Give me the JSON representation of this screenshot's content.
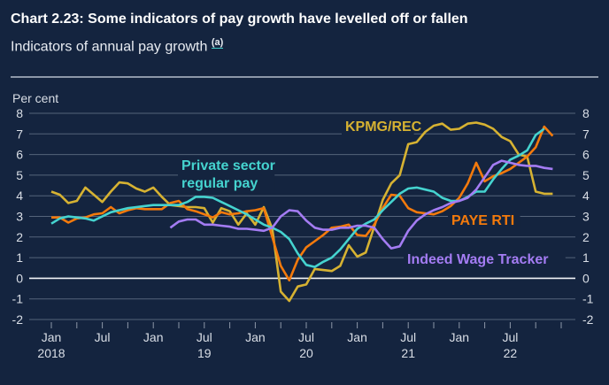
{
  "header": {
    "title": "Chart 2.23: Some indicators of pay growth have levelled off or fallen",
    "subtitle": "Indicators of annual pay growth",
    "footnote_marker": "(a)"
  },
  "chart_data": {
    "type": "line",
    "title": "Chart 2.23: Some indicators of pay growth have levelled off or fallen",
    "subtitle": "Indicators of annual pay growth",
    "ylabel": "Per cent",
    "xlabel": "",
    "ylim": [
      -2,
      8
    ],
    "yticks": [
      -2,
      -1,
      0,
      1,
      2,
      3,
      4,
      5,
      6,
      7,
      8
    ],
    "grid": true,
    "x_start": "Jan 2018",
    "x_frequency": "monthly",
    "xtick_labels": [
      {
        "month_index": 0,
        "label": "Jan",
        "year": "2018"
      },
      {
        "month_index": 6,
        "label": "Jul",
        "year": ""
      },
      {
        "month_index": 12,
        "label": "Jan",
        "year": ""
      },
      {
        "month_index": 18,
        "label": "Jul",
        "year": "19"
      },
      {
        "month_index": 24,
        "label": "Jan",
        "year": ""
      },
      {
        "month_index": 30,
        "label": "Jul",
        "year": "20"
      },
      {
        "month_index": 36,
        "label": "Jan",
        "year": ""
      },
      {
        "month_index": 42,
        "label": "Jul",
        "year": "21"
      },
      {
        "month_index": 48,
        "label": "Jan",
        "year": ""
      },
      {
        "month_index": 54,
        "label": "Jul",
        "year": "22"
      }
    ],
    "series": [
      {
        "name": "KPMG/REC",
        "color": "#d6b232",
        "values": [
          4.2,
          4.05,
          3.65,
          3.75,
          4.4,
          4.05,
          3.7,
          4.2,
          4.65,
          4.6,
          4.35,
          4.2,
          4.4,
          3.95,
          3.55,
          3.5,
          3.45,
          3.45,
          3.4,
          2.7,
          3.4,
          3.25,
          2.6,
          3.15,
          2.6,
          3.45,
          2.4,
          -0.65,
          -1.1,
          -0.4,
          -0.3,
          0.45,
          0.4,
          0.35,
          0.6,
          1.6,
          1.05,
          1.25,
          2.5,
          3.8,
          4.6,
          5.0,
          6.5,
          6.6,
          7.1,
          7.4,
          7.5,
          7.2,
          7.25,
          7.5,
          7.55,
          7.45,
          7.25,
          6.85,
          6.65,
          6.0,
          5.9,
          4.2,
          4.1,
          4.1
        ]
      },
      {
        "name": "PAYE RTI",
        "color": "#f47a0c",
        "values": [
          2.95,
          2.95,
          2.7,
          2.9,
          2.95,
          3.1,
          3.15,
          3.45,
          3.15,
          3.3,
          3.4,
          3.35,
          3.35,
          3.35,
          3.65,
          3.75,
          3.35,
          3.25,
          3.1,
          2.95,
          3.2,
          3.1,
          3.15,
          3.25,
          3.3,
          3.4,
          2.0,
          0.6,
          -0.1,
          0.9,
          1.5,
          1.8,
          2.1,
          2.45,
          2.5,
          2.6,
          2.1,
          2.05,
          2.6,
          3.4,
          4.05,
          4.0,
          3.4,
          3.2,
          3.15,
          3.1,
          3.25,
          3.5,
          3.9,
          4.6,
          5.6,
          4.7,
          4.95,
          5.1,
          5.3,
          5.6,
          5.9,
          6.35,
          7.35,
          6.9
        ]
      },
      {
        "name": "Private sector regular pay",
        "color": "#45d3cf",
        "values": [
          2.65,
          2.9,
          3.0,
          2.95,
          2.9,
          2.8,
          3.0,
          3.2,
          3.3,
          3.4,
          3.45,
          3.5,
          3.55,
          3.55,
          3.55,
          3.55,
          3.7,
          3.95,
          3.95,
          3.9,
          3.7,
          3.5,
          3.3,
          3.1,
          2.85,
          2.6,
          2.45,
          2.25,
          1.9,
          1.2,
          0.65,
          0.55,
          0.8,
          1.0,
          1.4,
          1.9,
          2.4,
          2.65,
          2.85,
          3.3,
          3.7,
          4.1,
          4.35,
          4.4,
          4.3,
          4.2,
          3.9,
          3.75,
          3.75,
          3.95,
          4.2,
          4.2,
          4.8,
          5.3,
          5.75,
          5.95,
          6.2,
          6.95,
          7.25,
          null
        ]
      },
      {
        "name": "Indeed Wage Tracker",
        "color": "#a47cf3",
        "values": [
          null,
          null,
          null,
          null,
          null,
          null,
          null,
          null,
          null,
          null,
          null,
          null,
          null,
          null,
          2.45,
          2.75,
          2.85,
          2.85,
          2.6,
          2.6,
          2.55,
          2.5,
          2.4,
          2.4,
          2.35,
          2.3,
          2.45,
          3.0,
          3.3,
          3.25,
          2.8,
          2.45,
          2.35,
          2.35,
          2.45,
          2.45,
          2.55,
          2.55,
          2.45,
          1.9,
          1.45,
          1.55,
          2.3,
          2.8,
          3.1,
          3.3,
          3.45,
          3.65,
          3.75,
          3.9,
          4.3,
          4.9,
          5.5,
          5.7,
          5.6,
          5.5,
          5.45,
          5.45,
          5.35,
          5.3
        ]
      }
    ],
    "annotations": [
      {
        "series": "Private sector regular pay",
        "lines": [
          "Private sector",
          "regular pay"
        ]
      },
      {
        "series": "KPMG/REC",
        "lines": [
          "KPMG/REC"
        ]
      },
      {
        "series": "PAYE RTI",
        "lines": [
          "PAYE RTI"
        ]
      },
      {
        "series": "Indeed Wage Tracker",
        "lines": [
          "Indeed Wage Tracker"
        ]
      }
    ]
  }
}
